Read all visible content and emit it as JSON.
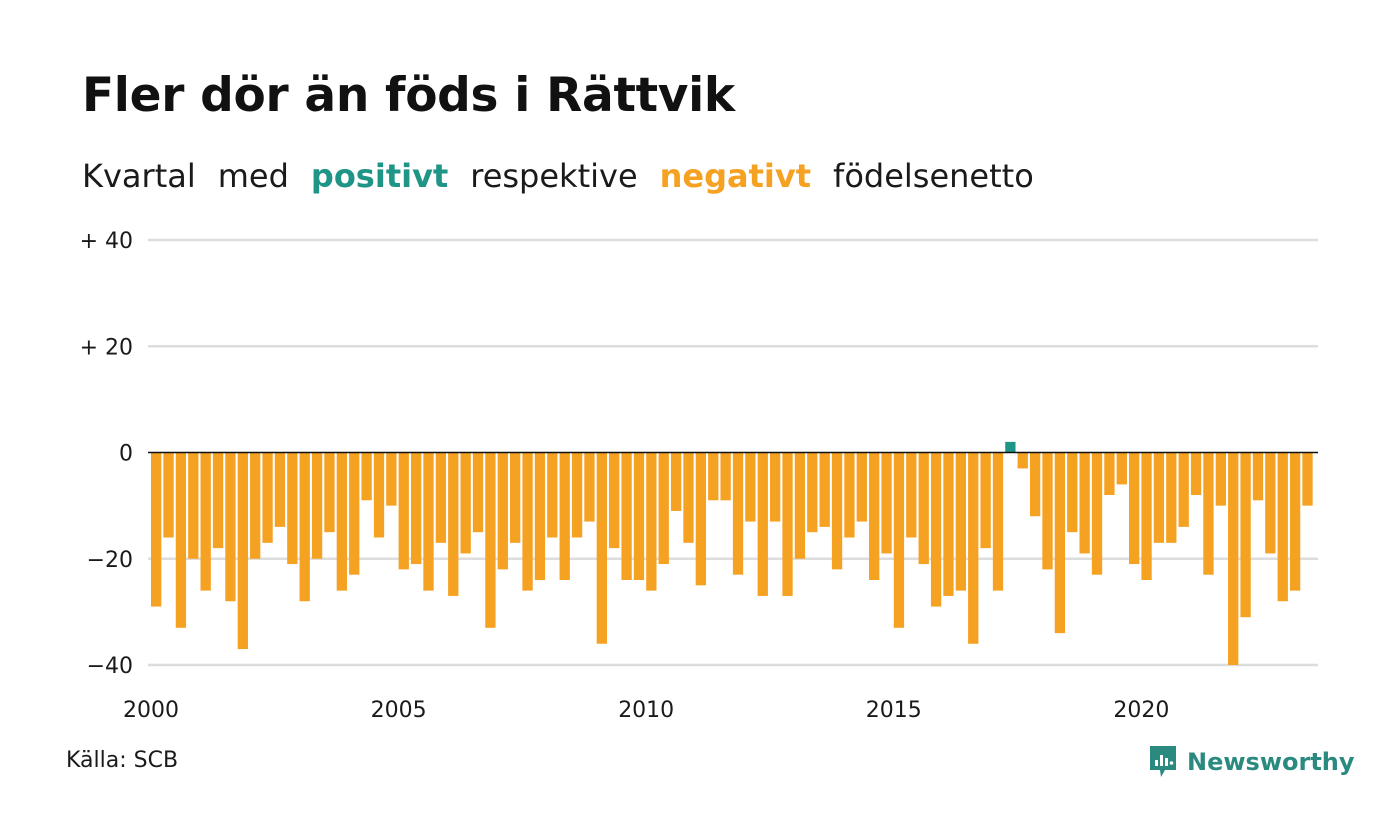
{
  "title": "Fler dör än föds i Rättvik",
  "subtitle": {
    "part1": "Kvartal",
    "part2": "med",
    "positive_word": "positivt",
    "part3": "respektive",
    "negative_word": "negativt",
    "part4": "födelsenetto"
  },
  "colors": {
    "positive": "#1f9587",
    "negative": "#f5a122",
    "grid": "#dddddd",
    "zero_line": "#111111"
  },
  "source": "Källa: SCB",
  "brand": {
    "name": "Newsworthy",
    "icon": "newsworthy-logo-icon"
  },
  "chart_data": {
    "type": "bar",
    "title": "Fler dör än föds i Rättvik",
    "xlabel": "",
    "ylabel": "",
    "ylim": [
      -40,
      40
    ],
    "yticks": [
      {
        "value": 40,
        "label": "+ 40"
      },
      {
        "value": 20,
        "label": "+ 20"
      },
      {
        "value": 0,
        "label": "0"
      },
      {
        "value": -20,
        "label": "−20"
      },
      {
        "value": -40,
        "label": "−40"
      }
    ],
    "xticks": [
      {
        "year": 2000,
        "label": "2000"
      },
      {
        "year": 2005,
        "label": "2005"
      },
      {
        "year": 2010,
        "label": "2010"
      },
      {
        "year": 2015,
        "label": "2015"
      },
      {
        "year": 2020,
        "label": "2020"
      }
    ],
    "grid": true,
    "start_year": 2000,
    "periods_per_year": 4,
    "values": [
      -29,
      -16,
      -33,
      -20,
      -26,
      -18,
      -28,
      -37,
      -20,
      -17,
      -14,
      -21,
      -28,
      -20,
      -15,
      -26,
      -23,
      -9,
      -16,
      -10,
      -22,
      -21,
      -26,
      -17,
      -27,
      -19,
      -15,
      -33,
      -22,
      -17,
      -26,
      -24,
      -16,
      -24,
      -16,
      -13,
      -36,
      -18,
      -24,
      -24,
      -26,
      -21,
      -11,
      -17,
      -25,
      -9,
      -9,
      -23,
      -13,
      -27,
      -13,
      -27,
      -20,
      -15,
      -14,
      -22,
      -16,
      -13,
      -24,
      -19,
      -33,
      -16,
      -21,
      -29,
      -27,
      -26,
      -36,
      -18,
      -26,
      2,
      -3,
      -12,
      -22,
      -34,
      -15,
      -19,
      -23,
      -8,
      -6,
      -21,
      -24,
      -17,
      -17,
      -14,
      -8,
      -23,
      -10,
      -40,
      -31,
      -9,
      -19,
      -28,
      -26,
      -10
    ]
  }
}
